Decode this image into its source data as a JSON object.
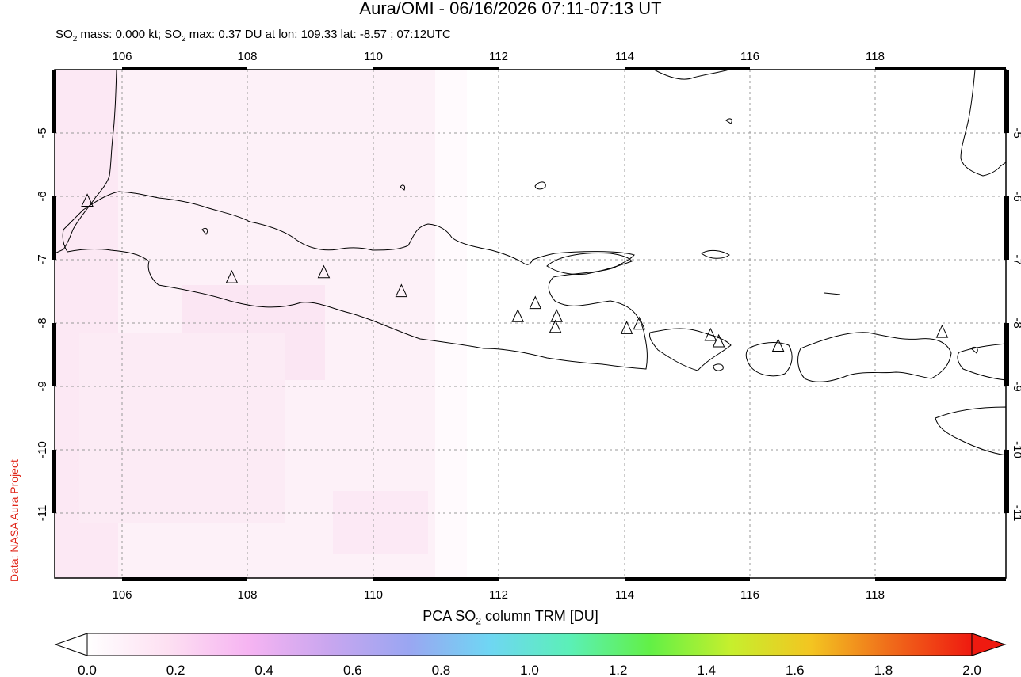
{
  "header": {
    "title": "Aura/OMI - 06/16/2026 07:11-07:13 UT",
    "subtitle_mass_prefix": "SO",
    "subtitle_mass_sub": "2",
    "subtitle_mass_value": " mass: 0.000 kt; ",
    "subtitle_max_prefix": "SO",
    "subtitle_max_sub": "2",
    "subtitle_max_value": " max: 0.37 DU at lon: 109.33 lat: -8.57 ; 07:12UTC"
  },
  "credit": "Data: NASA Aura Project",
  "map": {
    "lon_ticks": [
      "106",
      "108",
      "110",
      "112",
      "114",
      "116",
      "118"
    ],
    "lat_ticks": [
      "-5",
      "-6",
      "-7",
      "-8",
      "-9",
      "-10",
      "-11"
    ],
    "lon_range": [
      104.9,
      120.1
    ],
    "lat_range": [
      -12.1,
      -4.0
    ],
    "volcanoes": [
      {
        "lon": 105.42,
        "lat": -6.1
      },
      {
        "lon": 107.73,
        "lat": -7.32
      },
      {
        "lon": 109.2,
        "lat": -7.24
      },
      {
        "lon": 110.44,
        "lat": -7.54
      },
      {
        "lon": 112.3,
        "lat": -7.94
      },
      {
        "lon": 112.58,
        "lat": -7.73
      },
      {
        "lon": 112.92,
        "lat": -7.94
      },
      {
        "lon": 112.9,
        "lat": -8.11
      },
      {
        "lon": 114.04,
        "lat": -8.13
      },
      {
        "lon": 114.24,
        "lat": -8.06
      },
      {
        "lon": 115.38,
        "lat": -8.24
      },
      {
        "lon": 115.51,
        "lat": -8.34
      },
      {
        "lon": 116.46,
        "lat": -8.41
      },
      {
        "lon": 119.08,
        "lat": -8.19
      }
    ]
  },
  "colorbar": {
    "title_prefix": "PCA SO",
    "title_sub": "2",
    "title_suffix": " column TRM [DU]",
    "ticks": [
      "0.0",
      "0.2",
      "0.4",
      "0.6",
      "0.8",
      "1.0",
      "1.2",
      "1.4",
      "1.6",
      "1.8",
      "2.0"
    ],
    "range": [
      0.0,
      2.0
    ],
    "colors": [
      "#ffffff",
      "#fde0f2",
      "#f6b4f2",
      "#c9a6ef",
      "#9aa6f2",
      "#6fd6f3",
      "#5bf0b7",
      "#62f046",
      "#c6ef2d",
      "#f3c521",
      "#f06a1a",
      "#ef1a10"
    ]
  }
}
